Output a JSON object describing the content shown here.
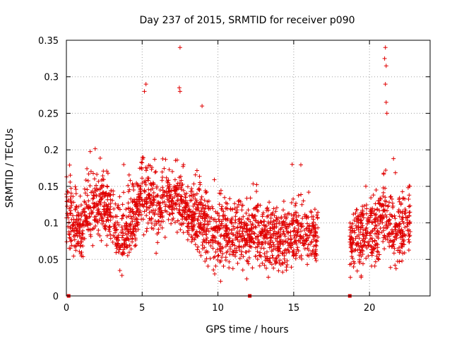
{
  "chart_data": {
    "type": "scatter",
    "title": "Day 237 of 2015, SRMTID for receiver p090",
    "xlabel": "GPS time / hours",
    "ylabel": "SRMTID / TECUs",
    "xlim": [
      0,
      24
    ],
    "ylim": [
      0,
      0.35
    ],
    "xticks": [
      0,
      5,
      10,
      15,
      20
    ],
    "xtick_labels": [
      "0",
      "5",
      "10",
      "15",
      "20"
    ],
    "yticks": [
      0,
      0.05,
      0.1,
      0.15,
      0.2,
      0.25,
      0.3,
      0.35
    ],
    "ytick_labels": [
      "0",
      "0.05",
      "0.1",
      "0.15",
      "0.2",
      "0.25",
      "0.3",
      "0.35"
    ],
    "grid": true,
    "marker": "+",
    "series": [
      {
        "name": "SRMTID",
        "color": "#e00000",
        "note": "approximate trend of a dense scatter; ~5 s sampled values",
        "trend": [
          {
            "x": 0.0,
            "y": 0.12
          },
          {
            "x": 0.5,
            "y": 0.1
          },
          {
            "x": 1.0,
            "y": 0.09
          },
          {
            "x": 1.5,
            "y": 0.13
          },
          {
            "x": 2.0,
            "y": 0.12
          },
          {
            "x": 2.5,
            "y": 0.13
          },
          {
            "x": 3.0,
            "y": 0.11
          },
          {
            "x": 3.5,
            "y": 0.08
          },
          {
            "x": 4.0,
            "y": 0.09
          },
          {
            "x": 4.5,
            "y": 0.11
          },
          {
            "x": 5.0,
            "y": 0.14
          },
          {
            "x": 5.5,
            "y": 0.13
          },
          {
            "x": 6.0,
            "y": 0.12
          },
          {
            "x": 6.5,
            "y": 0.13
          },
          {
            "x": 7.0,
            "y": 0.14
          },
          {
            "x": 7.5,
            "y": 0.13
          },
          {
            "x": 8.0,
            "y": 0.11
          },
          {
            "x": 8.5,
            "y": 0.11
          },
          {
            "x": 9.0,
            "y": 0.1
          },
          {
            "x": 9.5,
            "y": 0.09
          },
          {
            "x": 10.0,
            "y": 0.085
          },
          {
            "x": 10.5,
            "y": 0.09
          },
          {
            "x": 11.0,
            "y": 0.08
          },
          {
            "x": 11.5,
            "y": 0.085
          },
          {
            "x": 12.0,
            "y": 0.08
          },
          {
            "x": 12.5,
            "y": 0.09
          },
          {
            "x": 13.0,
            "y": 0.08
          },
          {
            "x": 13.5,
            "y": 0.075
          },
          {
            "x": 14.0,
            "y": 0.075
          },
          {
            "x": 14.5,
            "y": 0.08
          },
          {
            "x": 15.0,
            "y": 0.09
          },
          {
            "x": 15.5,
            "y": 0.085
          },
          {
            "x": 16.0,
            "y": 0.08
          },
          {
            "x": 16.5,
            "y": 0.08
          },
          {
            "x": 18.7,
            "y": 0.06
          },
          {
            "x": 19.0,
            "y": 0.08
          },
          {
            "x": 19.5,
            "y": 0.085
          },
          {
            "x": 20.0,
            "y": 0.09
          },
          {
            "x": 20.5,
            "y": 0.09
          },
          {
            "x": 21.0,
            "y": 0.11
          },
          {
            "x": 21.5,
            "y": 0.09
          },
          {
            "x": 22.0,
            "y": 0.09
          },
          {
            "x": 22.5,
            "y": 0.1
          }
        ],
        "x_ranges": [
          [
            0.0,
            16.6
          ],
          [
            18.7,
            22.7
          ]
        ],
        "peaks": [
          {
            "x": 5.25,
            "y": 0.29
          },
          {
            "x": 5.15,
            "y": 0.28
          },
          {
            "x": 7.5,
            "y": 0.34
          },
          {
            "x": 7.45,
            "y": 0.285
          },
          {
            "x": 7.5,
            "y": 0.28
          },
          {
            "x": 8.95,
            "y": 0.26
          },
          {
            "x": 14.9,
            "y": 0.18
          },
          {
            "x": 21.05,
            "y": 0.34
          },
          {
            "x": 21.0,
            "y": 0.325
          },
          {
            "x": 21.1,
            "y": 0.315
          },
          {
            "x": 21.05,
            "y": 0.29
          },
          {
            "x": 21.1,
            "y": 0.265
          },
          {
            "x": 21.15,
            "y": 0.25
          }
        ],
        "zero_points": [
          {
            "x": 0.15,
            "y": 0
          },
          {
            "x": 12.1,
            "y": 0
          },
          {
            "x": 18.7,
            "y": 0
          }
        ]
      }
    ]
  }
}
